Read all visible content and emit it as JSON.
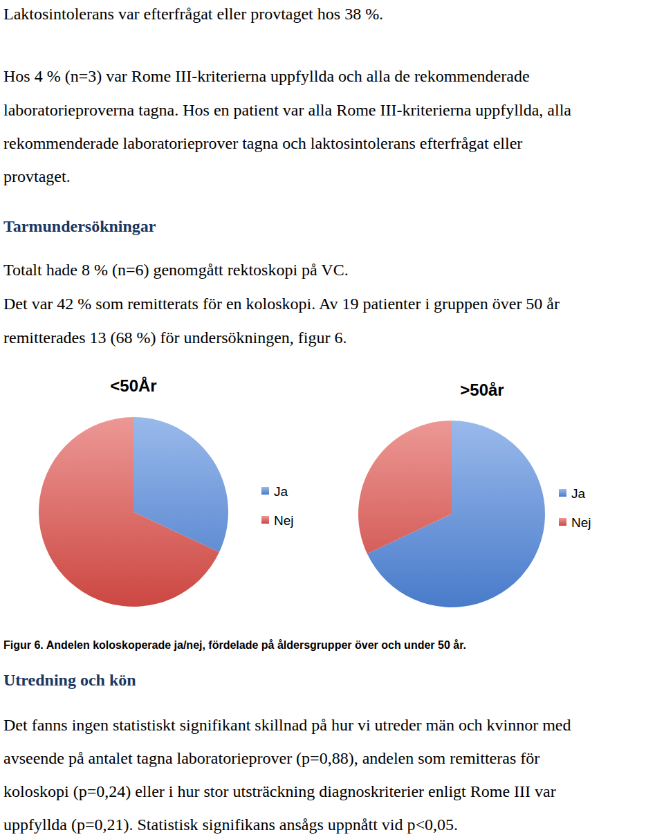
{
  "blocks": [
    {
      "lines": [
        "Laktosintolerans var efterfrågat eller provtaget hos 38 %."
      ]
    },
    {
      "lines": [
        "Hos 4 % (n=3) var Rome III-kriterierna uppfyllda och alla de rekommenderade",
        "laboratorieproverna tagna. Hos en patient var alla Rome III-kriterierna uppfyllda, alla",
        "rekommenderade laboratorieprover tagna och laktosintolerans efterfrågat eller",
        "provtaget."
      ]
    },
    {
      "heading": "Tarmundersökningar"
    },
    {
      "lines": [
        "Totalt hade 8 % (n=6) genomgått rektoskopi på VC."
      ]
    },
    {
      "lines": [
        "Det var 42 % som remitterats för en koloskopi. Av 19 patienter i gruppen över 50 år",
        "remitterades 13 (68 %) för undersökningen, figur 6."
      ]
    },
    {
      "caption": "Figur 6. Andelen koloskoperade ja/nej, fördelade på åldersgrupper över och under 50 år."
    },
    {
      "heading": "Utredning och kön"
    },
    {
      "lines": [
        "Det fanns ingen statistiskt signifikant skillnad på hur vi utreder män och kvinnor med",
        "avseende på antalet tagna laboratorieprover (p=0,88), andelen som remitteras för",
        "koloskopi (p=0,24) eller i hur stor utsträckning diagnoskriterier enligt Rome III var",
        "uppfyllda (p=0,21). Statistisk signifikans ansågs uppnått vid p<0,05."
      ]
    }
  ],
  "chart_data": [
    {
      "type": "pie",
      "title": "<50År",
      "categories": [
        "Ja",
        "Nej"
      ],
      "values": [
        32,
        68
      ],
      "colors": [
        "#4f86dc",
        "#de4d48"
      ],
      "legend": "right"
    },
    {
      "type": "pie",
      "title": ">50år",
      "categories": [
        "Ja",
        "Nej"
      ],
      "values": [
        68,
        32
      ],
      "colors": [
        "#4f86dc",
        "#de4d48"
      ],
      "legend": "right"
    }
  ]
}
